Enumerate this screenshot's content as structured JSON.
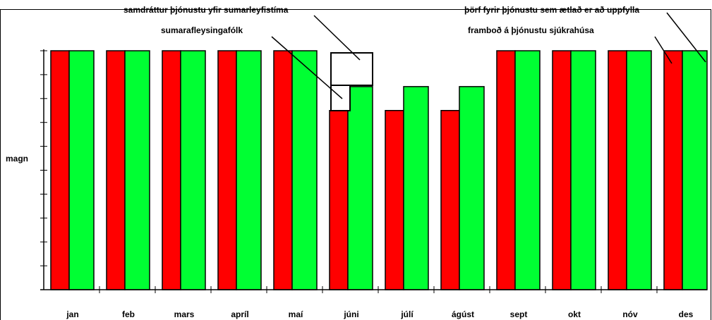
{
  "chart_data": {
    "type": "bar",
    "y_label": "magn",
    "categories": [
      "jan",
      "feb",
      "mars",
      "apríl",
      "maí",
      "júni",
      "júlí",
      "ágúst",
      "sept",
      "okt",
      "nóv",
      "des"
    ],
    "series": [
      {
        "name": "framboð á þjónustu sjúkrahúsa",
        "color": "#ff0000",
        "values": [
          10,
          10,
          10,
          10,
          10,
          7.5,
          7.5,
          7.5,
          10,
          10,
          10,
          10
        ]
      },
      {
        "name": "þörf fyrir þjónustu sem ætlað er að uppfylla",
        "color": "#00ff33",
        "values": [
          10,
          10,
          10,
          10,
          10,
          8.5,
          8.5,
          8.5,
          10,
          10,
          10,
          10
        ]
      }
    ],
    "annotations": [
      "samdráttur þjónustu yfir sumarleyfistíma",
      "sumarafleysingafólk"
    ],
    "ylim": [
      0,
      10
    ],
    "yticks": [
      0,
      1,
      2,
      3,
      4,
      5,
      6,
      7,
      8,
      9,
      10
    ]
  }
}
